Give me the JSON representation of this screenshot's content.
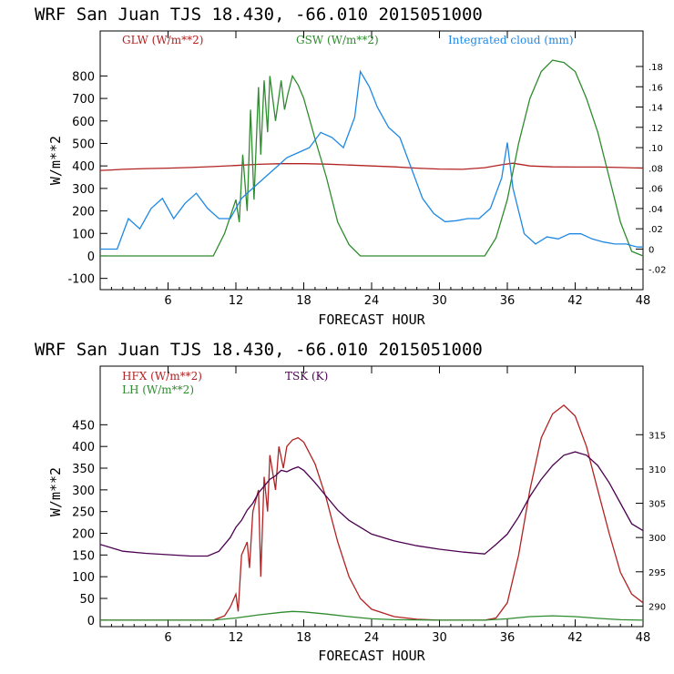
{
  "chart_data": [
    {
      "type": "line",
      "title": "WRF  San Juan TJS  18.430, -66.010  2015051000",
      "xlabel": "FORECAST HOUR",
      "ylabel": "W/m**2",
      "xlim": [
        0,
        48
      ],
      "ylim": [
        -150,
        1000
      ],
      "y2lim": [
        -0.04,
        0.215
      ],
      "x_ticks": [
        6,
        12,
        18,
        24,
        30,
        36,
        42,
        48
      ],
      "y_ticks": [
        -100,
        0,
        100,
        200,
        300,
        400,
        500,
        600,
        700,
        800
      ],
      "y2_ticks": [
        -0.02,
        0,
        0.02,
        0.04,
        0.06,
        0.08,
        0.1,
        0.12,
        0.14,
        0.16,
        0.18
      ],
      "y2_tick_labels": [
        "-.02",
        "0",
        ".02",
        ".04",
        ".06",
        ".08",
        ".10",
        ".12",
        ".14",
        ".16",
        ".18"
      ],
      "legend_position": "top",
      "series": [
        {
          "name": "GLW (W/m**2)",
          "axis": "left",
          "color": "#b22222",
          "x": [
            0,
            1,
            2,
            4,
            6,
            8,
            10,
            12,
            14,
            16,
            18,
            20,
            22,
            24,
            26,
            28,
            30,
            32,
            34,
            35.5,
            36.5,
            38,
            40,
            42,
            44,
            46,
            48
          ],
          "y": [
            380,
            382,
            385,
            388,
            390,
            393,
            397,
            402,
            407,
            410,
            410,
            408,
            404,
            400,
            396,
            390,
            386,
            385,
            392,
            405,
            412,
            400,
            396,
            395,
            395,
            393,
            390
          ]
        },
        {
          "name": "GSW (W/m**2)",
          "axis": "left",
          "color": "#2e8b2e",
          "x": [
            0,
            10,
            11,
            12,
            12.3,
            12.6,
            13,
            13.3,
            13.6,
            14,
            14.2,
            14.5,
            14.8,
            15,
            15.5,
            16,
            16.3,
            16.6,
            17,
            17.5,
            18,
            19,
            20,
            21,
            22,
            23,
            34,
            35,
            36,
            37,
            38,
            39,
            40,
            41,
            42,
            43,
            44,
            45,
            46,
            47,
            48
          ],
          "y": [
            0,
            0,
            100,
            250,
            150,
            450,
            200,
            650,
            250,
            750,
            450,
            780,
            550,
            800,
            600,
            780,
            650,
            720,
            800,
            760,
            700,
            520,
            350,
            150,
            50,
            0,
            0,
            80,
            250,
            500,
            700,
            820,
            870,
            860,
            820,
            700,
            550,
            350,
            150,
            20,
            0
          ]
        },
        {
          "name": "Integrated cloud (mm)",
          "axis": "right",
          "color": "#1e88e5",
          "x": [
            0,
            1.5,
            2.5,
            3.5,
            4.5,
            5.5,
            6.5,
            7.5,
            8.5,
            9.5,
            10.5,
            11.5,
            12.5,
            13.5,
            14.5,
            15.5,
            16.5,
            17.5,
            18.5,
            19.5,
            20.5,
            21.5,
            22.5,
            23,
            23.8,
            24.5,
            25.5,
            26.5,
            27.5,
            28.5,
            29.5,
            30.5,
            31.5,
            32.5,
            33.5,
            34.5,
            35.5,
            36,
            36.5,
            37.5,
            38.5,
            39.5,
            40.5,
            41.5,
            42.5,
            43.5,
            44.5,
            45.5,
            46.5,
            47.5,
            48
          ],
          "y": [
            0,
            0,
            0.03,
            0.02,
            0.04,
            0.05,
            0.03,
            0.045,
            0.055,
            0.04,
            0.03,
            0.03,
            0.05,
            0.06,
            0.07,
            0.08,
            0.09,
            0.095,
            0.1,
            0.115,
            0.11,
            0.1,
            0.13,
            0.175,
            0.16,
            0.14,
            0.12,
            0.11,
            0.08,
            0.05,
            0.035,
            0.027,
            0.028,
            0.03,
            0.03,
            0.04,
            0.07,
            0.105,
            0.06,
            0.015,
            0.005,
            0.012,
            0.01,
            0.015,
            0.015,
            0.01,
            0.007,
            0.005,
            0.005,
            0.002,
            0.002
          ]
        }
      ]
    },
    {
      "type": "line",
      "title": "WRF  San Juan TJS  18.430, -66.010  2015051000",
      "xlabel": "FORECAST HOUR",
      "ylabel": "W/m**2",
      "xlim": [
        0,
        48
      ],
      "ylim": [
        -15,
        585
      ],
      "y2lim": [
        287,
        325
      ],
      "x_ticks": [
        6,
        12,
        18,
        24,
        30,
        36,
        42,
        48
      ],
      "y_ticks": [
        0,
        50,
        100,
        150,
        200,
        250,
        300,
        350,
        400,
        450
      ],
      "y2_ticks": [
        290,
        295,
        300,
        305,
        310,
        315
      ],
      "y2_tick_labels": [
        "290",
        "295",
        "300",
        "305",
        "310",
        "315"
      ],
      "legend_position": "top",
      "series": [
        {
          "name": "HFX (W/m**2)",
          "axis": "left",
          "color": "#b22222",
          "x": [
            0,
            10,
            11,
            11.5,
            12,
            12.2,
            12.5,
            13,
            13.2,
            13.5,
            14,
            14.2,
            14.5,
            14.8,
            15,
            15.5,
            15.8,
            16.2,
            16.5,
            17,
            17.5,
            18,
            19,
            20,
            21,
            22,
            23,
            24,
            26,
            28,
            30,
            34,
            35,
            36,
            37,
            38,
            39,
            40,
            41,
            42,
            43,
            44,
            45,
            46,
            47,
            48
          ],
          "y": [
            0,
            0,
            10,
            30,
            60,
            20,
            150,
            180,
            120,
            250,
            300,
            100,
            330,
            250,
            380,
            300,
            400,
            350,
            400,
            415,
            420,
            410,
            360,
            280,
            180,
            100,
            50,
            25,
            8,
            2,
            0,
            0,
            5,
            40,
            150,
            300,
            420,
            475,
            495,
            470,
            400,
            300,
            200,
            110,
            60,
            40
          ]
        },
        {
          "name": "LH (W/m**2)",
          "axis": "left",
          "color": "#2e8b2e",
          "x": [
            0,
            10,
            12,
            14,
            16,
            17,
            18,
            20,
            22,
            24,
            26,
            30,
            34,
            36,
            38,
            40,
            42,
            44,
            46,
            48
          ],
          "y": [
            0,
            0,
            5,
            12,
            18,
            20,
            19,
            14,
            8,
            3,
            1,
            0,
            0,
            3,
            8,
            10,
            8,
            4,
            1,
            0
          ]
        },
        {
          "name": "TSK (K)",
          "axis": "right",
          "color": "#4b0050",
          "x": [
            0,
            2,
            4,
            6,
            8,
            9.5,
            10.5,
            11.5,
            12,
            12.5,
            13,
            13.5,
            14,
            14.5,
            15,
            15.5,
            16,
            16.5,
            17,
            17.5,
            18,
            19,
            20,
            21,
            22,
            24,
            26,
            28,
            30,
            32,
            34,
            35,
            36,
            37,
            38,
            39,
            40,
            41,
            42,
            43,
            44,
            45,
            46,
            47,
            48
          ],
          "y": [
            299,
            298,
            297.7,
            297.5,
            297.3,
            297.3,
            298,
            300,
            301.5,
            302.5,
            304,
            305,
            306.5,
            307.5,
            308.5,
            309,
            309.8,
            309.6,
            310,
            310.3,
            309.8,
            308,
            306,
            304,
            302.5,
            300.5,
            299.5,
            298.8,
            298.3,
            297.9,
            297.6,
            299,
            300.5,
            303,
            306,
            308.5,
            310.5,
            312,
            312.5,
            312,
            310.5,
            308,
            305,
            302,
            301
          ]
        }
      ]
    }
  ]
}
